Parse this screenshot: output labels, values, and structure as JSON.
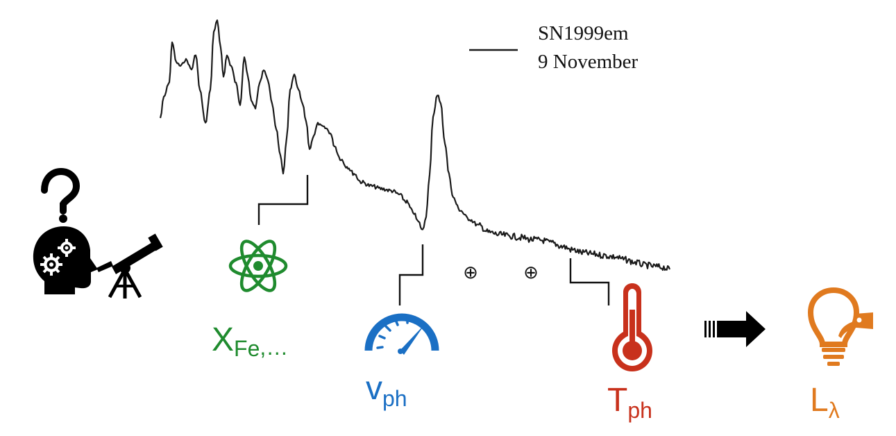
{
  "legend": {
    "line1": "SN1999em",
    "line2": "9 November"
  },
  "parameters": {
    "composition": {
      "main": "X",
      "sub": "Fe",
      "suffix": ",…",
      "icon": "atom-icon",
      "color": "#1f8b2e"
    },
    "velocity": {
      "main": "v",
      "sub": "ph",
      "icon": "speedometer-icon",
      "color": "#1a6fc4"
    },
    "temperature": {
      "main": "T",
      "sub": "ph",
      "icon": "thermometer-icon",
      "color": "#c8311c"
    },
    "luminosity": {
      "main": "L",
      "sub": "λ",
      "icon": "lightbulb-icon",
      "color": "#e07a1f"
    }
  },
  "telluric_symbols": [
    "⊕",
    "⊕"
  ],
  "left_icons": [
    "question-mark-icon",
    "thinking-head-icon",
    "telescope-icon"
  ],
  "arrow_icon": "right-arrow-icon",
  "spectrum_color": "#1a1a1a"
}
